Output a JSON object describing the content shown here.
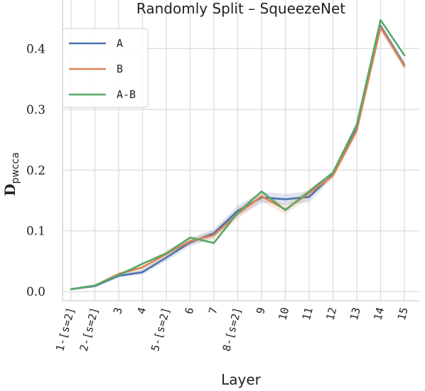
{
  "chart_data": {
    "type": "line",
    "title": "Randomly Split – SqueezeNet",
    "xlabel": "Layer",
    "ylabel": "D",
    "ylabel_subscript": "pwcca",
    "categories": [
      "1-[s=2]",
      "2-[s=2]",
      "3",
      "4",
      "5-[s=2]",
      "6",
      "7",
      "8-[s=2]",
      "9",
      "10",
      "11",
      "12",
      "13",
      "14",
      "15"
    ],
    "ylim": [
      -0.015,
      0.48
    ],
    "yticks": [
      "0.0",
      "0.1",
      "0.2",
      "0.3",
      "0.4"
    ],
    "grid": true,
    "legend_position": "top-left",
    "series": [
      {
        "name": "A",
        "color": "#4c72b0",
        "values": [
          0.004,
          0.009,
          0.026,
          0.032,
          0.056,
          0.081,
          0.096,
          0.133,
          0.155,
          0.152,
          0.156,
          0.193,
          0.268,
          0.437,
          0.373
        ]
      },
      {
        "name": "B",
        "color": "#dd8452",
        "values": [
          0.004,
          0.01,
          0.029,
          0.04,
          0.062,
          0.083,
          0.093,
          0.128,
          0.157,
          0.135,
          0.162,
          0.191,
          0.265,
          0.435,
          0.371
        ]
      },
      {
        "name": "A-B",
        "color": "#55a868",
        "values": [
          0.004,
          0.01,
          0.027,
          0.046,
          0.063,
          0.089,
          0.08,
          0.13,
          0.165,
          0.134,
          0.165,
          0.196,
          0.275,
          0.447,
          0.389
        ]
      }
    ],
    "bands": [
      {
        "series": "A",
        "lower": [
          0.003,
          0.008,
          0.023,
          0.028,
          0.05,
          0.075,
          0.089,
          0.124,
          0.146,
          0.143,
          0.147,
          0.188,
          0.262,
          0.431,
          0.367
        ],
        "upper": [
          0.005,
          0.01,
          0.029,
          0.036,
          0.062,
          0.087,
          0.103,
          0.142,
          0.164,
          0.161,
          0.165,
          0.198,
          0.274,
          0.443,
          0.379
        ]
      },
      {
        "series": "B",
        "lower": [
          0.003,
          0.009,
          0.026,
          0.035,
          0.056,
          0.077,
          0.086,
          0.119,
          0.149,
          0.127,
          0.154,
          0.186,
          0.259,
          0.429,
          0.365
        ],
        "upper": [
          0.005,
          0.011,
          0.032,
          0.045,
          0.068,
          0.089,
          0.1,
          0.137,
          0.165,
          0.143,
          0.17,
          0.196,
          0.271,
          0.441,
          0.377
        ]
      }
    ]
  }
}
